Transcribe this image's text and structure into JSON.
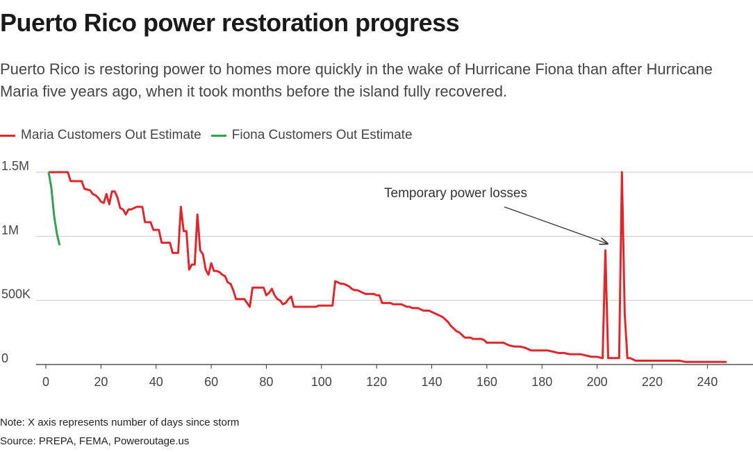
{
  "header": {
    "title": "Puerto Rico power restoration progress",
    "subtitle": "Puerto Rico is restoring power to homes more quickly in the wake of Hurricane Fiona than after Hurricane Maria five years ago, when it took months before the island fully recovered."
  },
  "legend": {
    "items": [
      {
        "label": "Maria Customers Out Estimate",
        "color": "#e0262b"
      },
      {
        "label": "Fiona Customers Out Estimate",
        "color": "#2ea44f"
      }
    ]
  },
  "footer": {
    "note": "Note: X axis represents number of days since storm",
    "source": "Source: PREPA, FEMA, Poweroutage.us"
  },
  "chart_data": {
    "type": "line",
    "xlim": [
      0,
      250
    ],
    "ylim": [
      0,
      1500000
    ],
    "xticks": [
      {
        "value": 0,
        "label": "0"
      },
      {
        "value": 20,
        "label": "20"
      },
      {
        "value": 40,
        "label": "40"
      },
      {
        "value": 60,
        "label": "60"
      },
      {
        "value": 80,
        "label": "80"
      },
      {
        "value": 100,
        "label": "100"
      },
      {
        "value": 120,
        "label": "120"
      },
      {
        "value": 140,
        "label": "140"
      },
      {
        "value": 160,
        "label": "160"
      },
      {
        "value": 180,
        "label": "180"
      },
      {
        "value": 200,
        "label": "200"
      },
      {
        "value": 220,
        "label": "220"
      },
      {
        "value": 240,
        "label": "240"
      }
    ],
    "yticks": [
      {
        "value": 0,
        "label": "0"
      },
      {
        "value": 500000,
        "label": "500K"
      },
      {
        "value": 1000000,
        "label": "1M"
      },
      {
        "value": 1500000,
        "label": "1.5M"
      }
    ],
    "grid": true,
    "legend_position": "top-left",
    "annotation": {
      "text": "Temporary power losses",
      "x": 204,
      "y": 950000
    },
    "series": [
      {
        "name": "Maria Customers Out Estimate",
        "color": "#e0262b",
        "x": [
          1,
          8,
          9,
          13,
          14,
          16,
          17,
          18,
          19,
          20,
          21,
          22,
          23,
          24,
          25,
          26,
          27,
          28,
          29,
          30,
          31,
          32,
          33,
          34,
          35,
          36,
          37,
          38,
          39,
          40,
          41,
          42,
          43,
          44,
          45,
          46,
          47,
          48,
          49,
          50,
          51,
          52,
          53,
          54,
          55,
          56,
          57,
          58,
          59,
          60,
          61,
          62,
          63,
          64,
          65,
          66,
          67,
          68,
          69,
          70,
          71,
          72,
          73,
          74,
          75,
          76,
          77,
          78,
          79,
          80,
          81,
          82,
          83,
          84,
          85,
          86,
          87,
          88,
          89,
          90,
          91,
          92,
          93,
          94,
          95,
          96,
          97,
          98,
          99,
          100,
          101,
          102,
          103,
          104,
          105,
          106,
          107,
          108,
          109,
          110,
          111,
          112,
          113,
          114,
          115,
          116,
          117,
          118,
          119,
          120,
          121,
          122,
          123,
          124,
          125,
          126,
          127,
          128,
          129,
          130,
          131,
          132,
          133,
          134,
          135,
          136,
          137,
          138,
          139,
          140,
          141,
          142,
          143,
          144,
          145,
          146,
          147,
          148,
          149,
          150,
          151,
          152,
          153,
          154,
          155,
          156,
          157,
          158,
          159,
          160,
          162,
          164,
          166,
          168,
          170,
          172,
          174,
          176,
          178,
          180,
          182,
          184,
          186,
          188,
          190,
          192,
          194,
          196,
          198,
          200,
          202,
          203,
          204,
          205,
          206,
          207,
          208,
          209,
          210,
          211,
          212,
          214,
          216,
          218,
          220,
          222,
          224,
          226,
          228,
          230,
          232,
          234,
          236,
          238,
          240,
          242,
          244,
          246,
          247
        ],
        "y": [
          1500000,
          1500000,
          1430000,
          1430000,
          1370000,
          1360000,
          1330000,
          1320000,
          1300000,
          1270000,
          1260000,
          1330000,
          1250000,
          1350000,
          1350000,
          1300000,
          1220000,
          1210000,
          1170000,
          1210000,
          1210000,
          1220000,
          1230000,
          1230000,
          1230000,
          1110000,
          1110000,
          1110000,
          1050000,
          1050000,
          1050000,
          950000,
          950000,
          950000,
          950000,
          870000,
          870000,
          870000,
          1230000,
          1040000,
          1040000,
          740000,
          780000,
          780000,
          1170000,
          890000,
          860000,
          740000,
          700000,
          790000,
          730000,
          730000,
          720000,
          700000,
          690000,
          640000,
          630000,
          580000,
          510000,
          510000,
          510000,
          510000,
          480000,
          450000,
          600000,
          600000,
          600000,
          600000,
          600000,
          540000,
          560000,
          590000,
          540000,
          510000,
          500000,
          470000,
          480000,
          510000,
          530000,
          450000,
          450000,
          450000,
          450000,
          450000,
          450000,
          450000,
          450000,
          450000,
          460000,
          460000,
          460000,
          460000,
          460000,
          460000,
          650000,
          640000,
          630000,
          630000,
          620000,
          610000,
          590000,
          580000,
          580000,
          570000,
          560000,
          550000,
          550000,
          550000,
          550000,
          540000,
          540000,
          480000,
          480000,
          480000,
          480000,
          470000,
          470000,
          470000,
          470000,
          460000,
          450000,
          450000,
          440000,
          440000,
          440000,
          430000,
          420000,
          420000,
          420000,
          410000,
          400000,
          390000,
          380000,
          370000,
          350000,
          330000,
          300000,
          280000,
          260000,
          250000,
          230000,
          210000,
          210000,
          210000,
          200000,
          200000,
          200000,
          200000,
          190000,
          170000,
          170000,
          170000,
          170000,
          150000,
          140000,
          140000,
          130000,
          110000,
          110000,
          110000,
          110000,
          100000,
          90000,
          90000,
          80000,
          80000,
          80000,
          70000,
          60000,
          60000,
          50000,
          890000,
          50000,
          50000,
          50000,
          50000,
          50000,
          1500000,
          400000,
          50000,
          50000,
          30000,
          30000,
          30000,
          30000,
          30000,
          30000,
          30000,
          30000,
          30000,
          20000,
          20000,
          20000,
          20000,
          20000,
          20000,
          20000,
          20000,
          20000
        ]
      },
      {
        "name": "Fiona Customers Out Estimate",
        "color": "#2ea44f",
        "x": [
          1,
          2,
          3,
          4,
          5
        ],
        "y": [
          1500000,
          1380000,
          1160000,
          1020000,
          930000
        ]
      }
    ]
  }
}
